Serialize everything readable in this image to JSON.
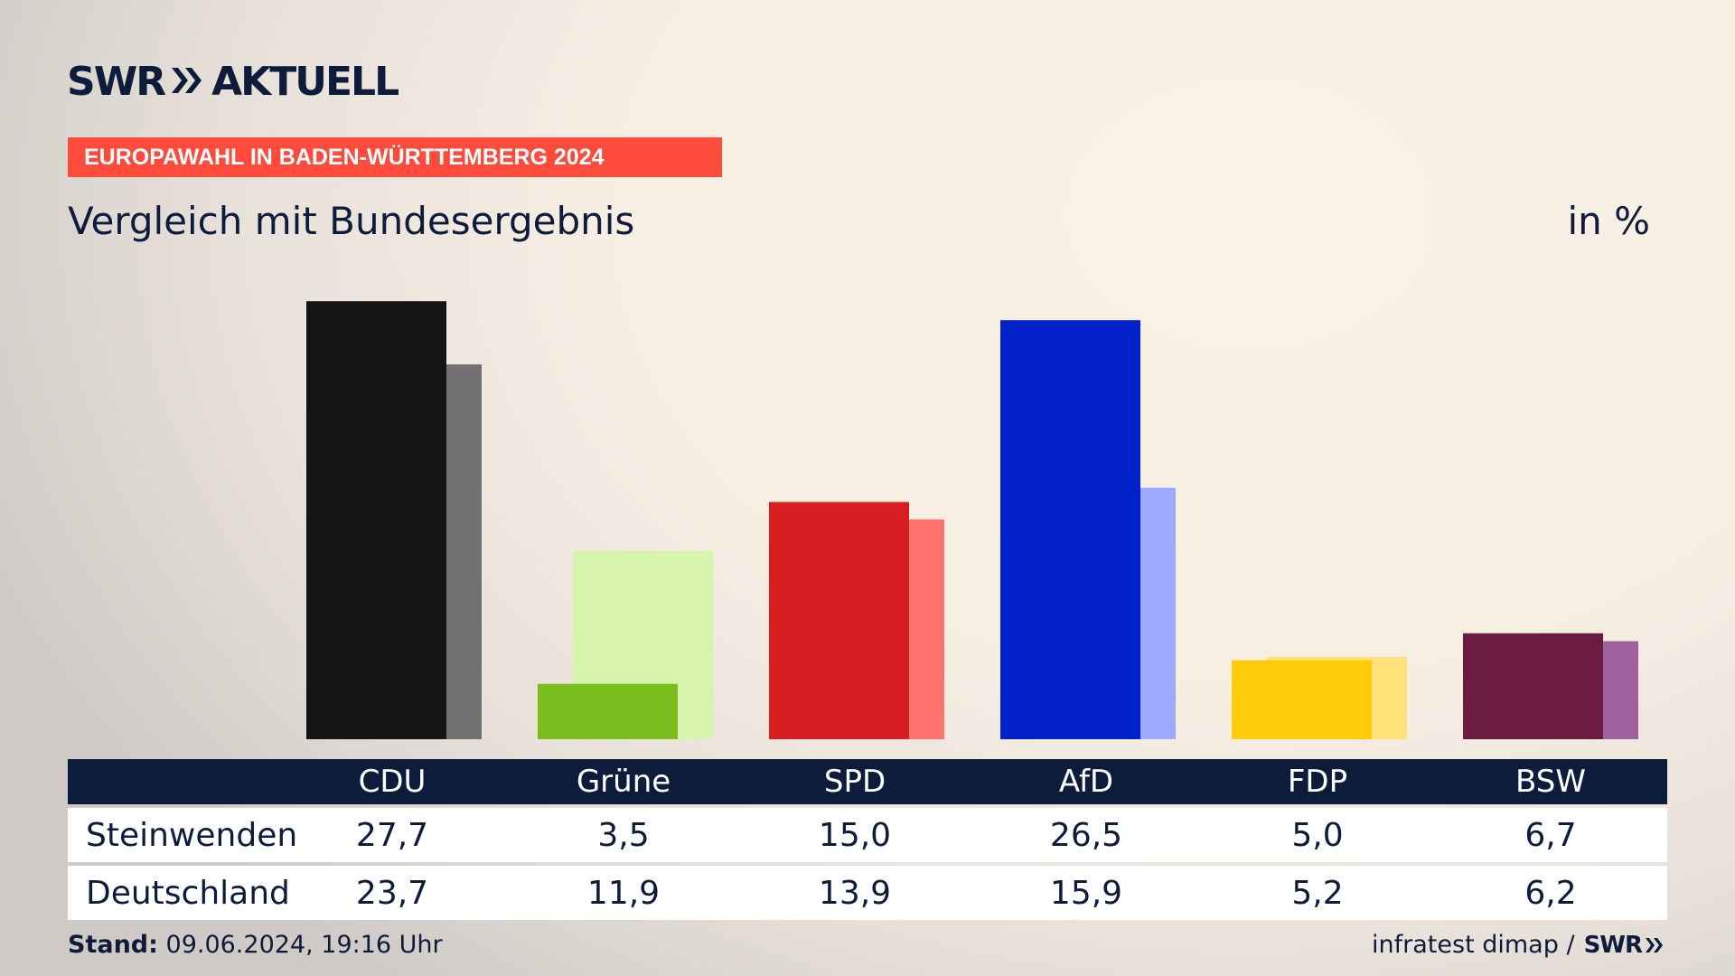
{
  "brand": {
    "logo_text_1": "SWR",
    "logo_text_2": "AKTUELL",
    "primary_color": "#0d1c3b",
    "accent_color": "#ff4b3c"
  },
  "banner": {
    "label": "EUROPAWAHL IN BADEN-WÜRTTEMBERG 2024"
  },
  "subtitle": "Vergleich mit Bundesergebnis",
  "unit": "in %",
  "table": {
    "header": [
      "CDU",
      "Grüne",
      "SPD",
      "AfD",
      "FDP",
      "BSW"
    ],
    "rows": [
      {
        "label": "Steinwenden",
        "values": [
          "27,7",
          "3,5",
          "15,0",
          "26,5",
          "5,0",
          "6,7"
        ]
      },
      {
        "label": "Deutschland",
        "values": [
          "23,7",
          "11,9",
          "13,9",
          "15,9",
          "5,2",
          "6,2"
        ]
      }
    ]
  },
  "footer": {
    "stand_label": "Stand:",
    "stand_value": "09.06.2024, 19:16 Uhr",
    "source": "infratest dimap /",
    "source_logo": "SWR"
  },
  "chart_data": {
    "type": "bar",
    "categories": [
      "CDU",
      "Grüne",
      "SPD",
      "AfD",
      "FDP",
      "BSW"
    ],
    "series": [
      {
        "name": "Steinwenden",
        "values": [
          27.7,
          3.5,
          15.0,
          26.5,
          5.0,
          6.7
        ],
        "colors": [
          "#141414",
          "#7abe1e",
          "#d81e20",
          "#0020c8",
          "#ffcc0b",
          "#6b1a40"
        ]
      },
      {
        "name": "Deutschland",
        "values": [
          23.7,
          11.9,
          13.9,
          15.9,
          5.2,
          6.2
        ],
        "colors": [
          "#717171",
          "#d6f4ab",
          "#ff736f",
          "#9eaaff",
          "#ffe27a",
          "#a0609e"
        ]
      }
    ],
    "ylim": [
      0,
      28
    ],
    "grid": false,
    "legend": "none"
  }
}
